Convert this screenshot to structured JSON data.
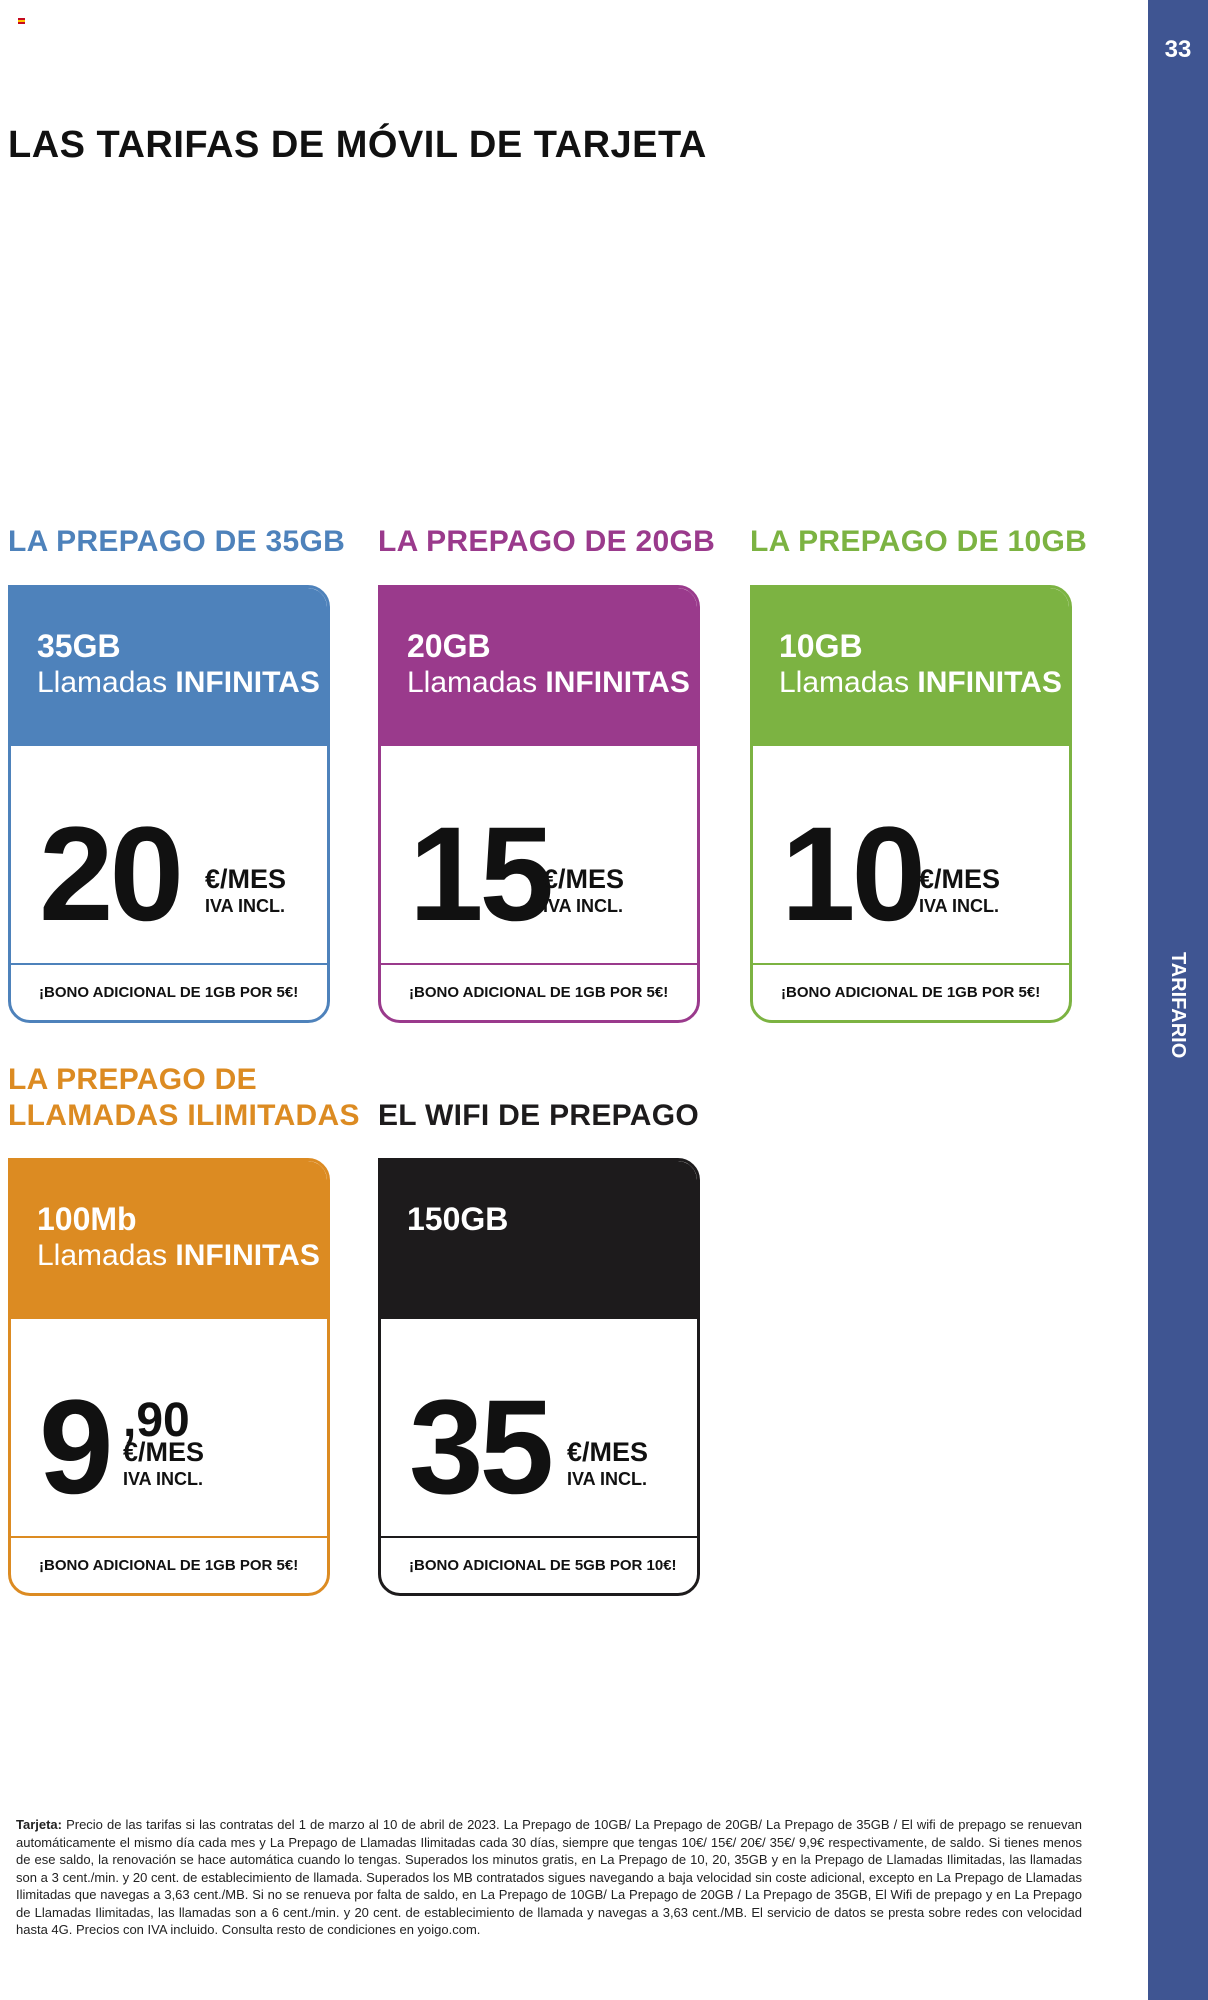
{
  "page": {
    "number": "33",
    "section_tab": "TARIFARIO",
    "title": "LAS TARIFAS DE MÓVIL DE TARJETA"
  },
  "colors": {
    "sidebar": "#3f5592",
    "plan_35gb": "#4e82bb",
    "plan_20gb": "#9a3a8c",
    "plan_10gb": "#7cb342",
    "plan_llamadas": "#dc8b22",
    "plan_wifi": "#1d1b1c"
  },
  "plans": [
    {
      "heading": "LA PREPAGO DE 35GB",
      "data": "35GB",
      "calls_prefix": "Llamadas",
      "calls_bold": "INFINITAS",
      "price": "20",
      "per": "€/MES",
      "tax": "IVA INCL.",
      "bonus": "¡BONO ADICIONAL DE 1GB POR 5€!"
    },
    {
      "heading": "LA PREPAGO DE 20GB",
      "data": "20GB",
      "calls_prefix": "Llamadas",
      "calls_bold": "INFINITAS",
      "price": "15",
      "per": "€/MES",
      "tax": "IVA INCL.",
      "bonus": "¡BONO ADICIONAL DE 1GB POR 5€!"
    },
    {
      "heading": "LA PREPAGO DE 10GB",
      "data": "10GB",
      "calls_prefix": "Llamadas",
      "calls_bold": "INFINITAS",
      "price": "10",
      "per": "€/MES",
      "tax": "IVA INCL.",
      "bonus": "¡BONO ADICIONAL DE 1GB POR 5€!"
    },
    {
      "heading_line1": "LA PREPAGO DE",
      "heading_line2": "LLAMADAS ILIMITADAS",
      "data": "100Mb",
      "calls_prefix": "Llamadas",
      "calls_bold": "INFINITAS",
      "price": "9",
      "price_decimal": ",90",
      "per": "€/MES",
      "tax": "IVA INCL.",
      "bonus": "¡BONO ADICIONAL DE 1GB POR 5€!"
    },
    {
      "heading": "EL WIFI DE PREPAGO",
      "data": "150GB",
      "price": "35",
      "per": "€/MES",
      "tax": "IVA INCL.",
      "bonus": "¡BONO ADICIONAL DE 5GB POR 10€!"
    }
  ],
  "footnote": {
    "label": "Tarjeta:",
    "text": "Precio de las tarifas si las contratas del 1 de marzo al 10 de abril de 2023. La Prepago de 10GB/ La Prepago de 20GB/ La Prepago de 35GB / El wifi de prepago se renuevan automáticamente el mismo día cada mes y La Prepago de Llamadas Ilimitadas cada 30 días, siempre que tengas 10€/ 15€/ 20€/ 35€/ 9,9€ respectivamente, de saldo. Si tienes menos de ese saldo, la renovación se hace automática cuando lo tengas. Superados los minutos gratis, en La Prepago de 10, 20, 35GB y en la Prepago de Llamadas Ilimitadas, las llamadas son a 3 cent./min. y 20 cent. de establecimiento de llamada. Superados los MB contratados sigues navegando a baja velocidad sin coste adicional, excepto en La Prepago de Llamadas Ilimitadas que navegas a 3,63 cent./MB. Si no se renueva por falta de saldo, en La Prepago de 10GB/ La Prepago de 20GB / La Prepago de 35GB, El Wifi de prepago y en La Prepago de Llamadas Ilimitadas, las llamadas son a 6 cent./min. y 20 cent. de establecimiento de llamada y navegas a 3,63 cent./MB. El servicio de datos se presta sobre redes con velocidad hasta 4G. Precios con IVA incluido. Consulta resto de condiciones en yoigo.com."
  }
}
